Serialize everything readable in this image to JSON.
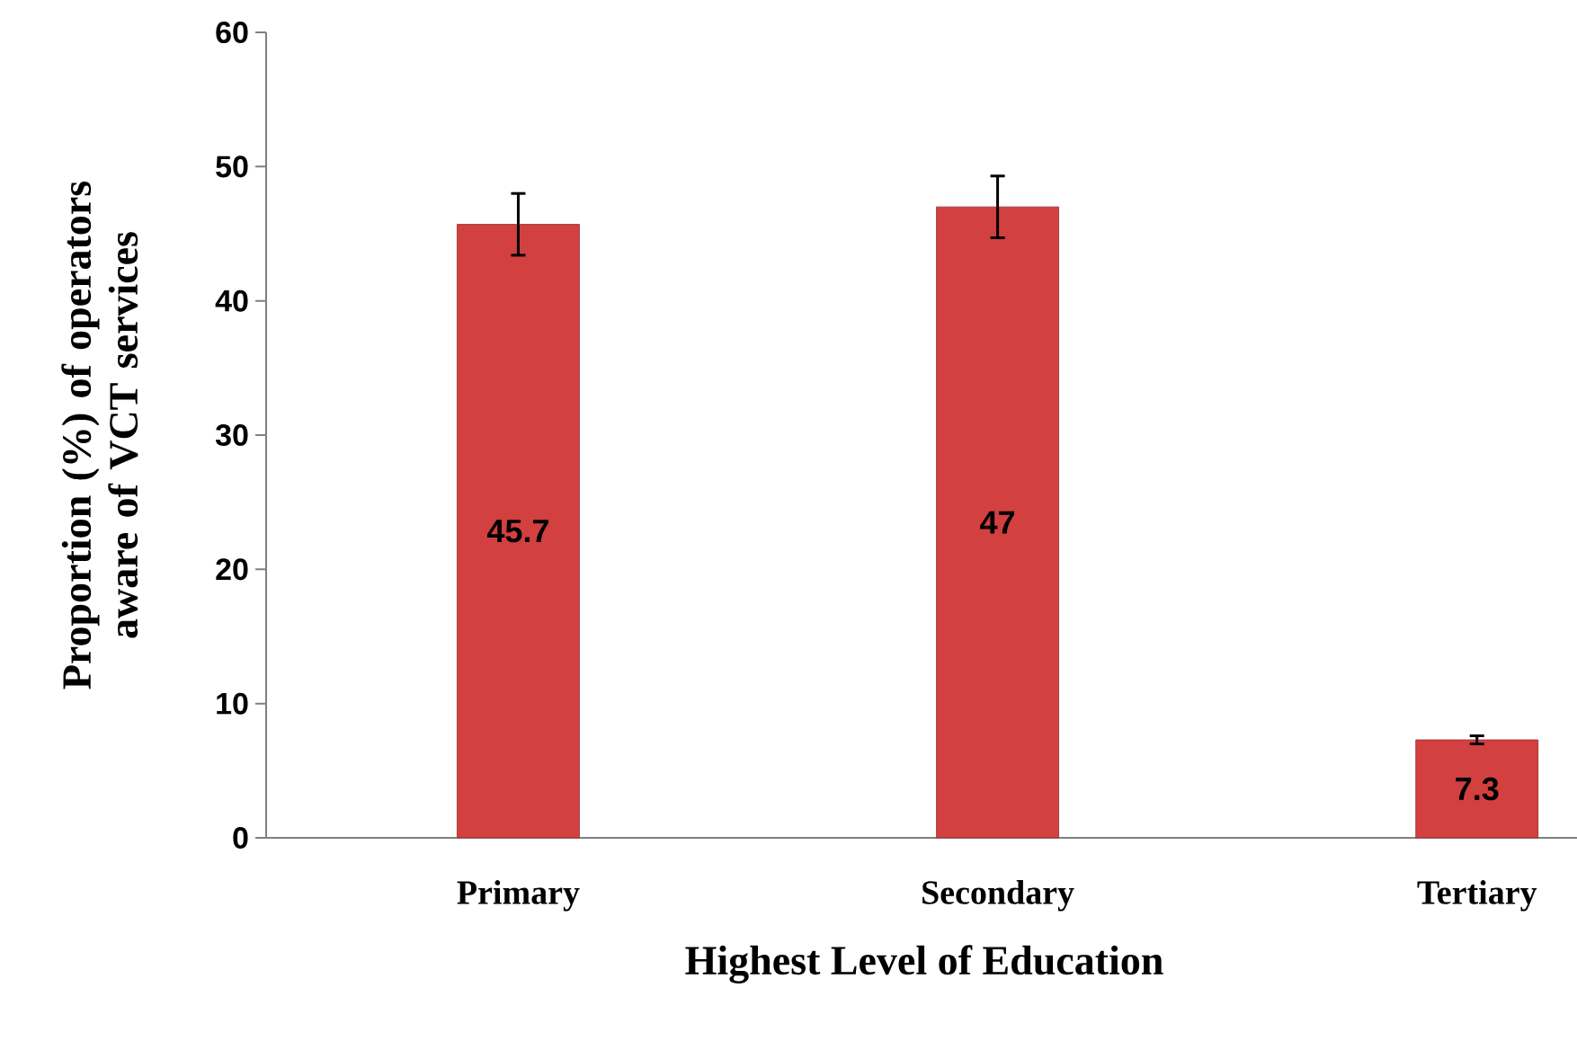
{
  "chart_data": {
    "type": "bar",
    "xlabel": "Highest Level of Education",
    "ylabel": "Proportion (%) of operators aware of VCT services",
    "categories": [
      "Primary",
      "Secondary",
      "Tertiary"
    ],
    "values": [
      45.7,
      47,
      7.3
    ],
    "errors": [
      2.3,
      2.3,
      0.3
    ],
    "color": "#d2403f",
    "ylim": [
      0,
      60
    ],
    "yticks": [
      0,
      10,
      20,
      30,
      40,
      50,
      60
    ],
    "data_labels": true,
    "grid": false
  }
}
